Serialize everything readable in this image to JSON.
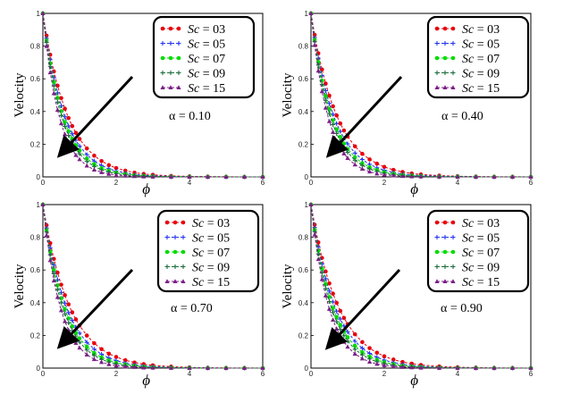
{
  "figure": {
    "panels": [
      {
        "alpha_label": "α = 0.10"
      },
      {
        "alpha_label": "α = 0.40"
      },
      {
        "alpha_label": "α = 0.70"
      },
      {
        "alpha_label": "α = 0.90"
      }
    ]
  },
  "chart_data": {
    "type": "line",
    "layout": "2x2 grid",
    "ylabel": "Velocity",
    "xlabel": "ϕ",
    "xlim": [
      0,
      6
    ],
    "ylim": [
      0,
      1
    ],
    "xticks": [
      "0",
      "2",
      "4",
      "6"
    ],
    "yticks": [
      "0",
      "0.2",
      "0.4",
      "0.6",
      "0.8",
      "1"
    ],
    "legend_position": "top-right",
    "annotation": "arrow indicating decreasing velocity with increasing Sc",
    "x": [
      0,
      0.1,
      0.2,
      0.3,
      0.4,
      0.5,
      0.6,
      0.7,
      0.8,
      0.9,
      1.0,
      1.2,
      1.4,
      1.6,
      1.8,
      2.0,
      2.25,
      2.5,
      2.75,
      3.0,
      3.5,
      4.0,
      4.5,
      5.0,
      5.5,
      6.0
    ],
    "panels": [
      {
        "alpha": "0.10",
        "series": [
          {
            "name": "Sc = 03",
            "color": "#e8000b",
            "marker": "dot",
            "values": [
              1.0,
              0.864,
              0.747,
              0.645,
              0.558,
              0.482,
              0.417,
              0.36,
              0.311,
              0.269,
              0.232,
              0.174,
              0.13,
              0.097,
              0.072,
              0.054,
              0.038,
              0.026,
              0.018,
              0.013,
              0.006,
              0.003,
              0.002,
              0.001,
              0.0,
              0.0
            ]
          },
          {
            "name": "Sc = 05",
            "color": "#2233ee",
            "marker": "plus",
            "values": [
              1.0,
              0.847,
              0.717,
              0.607,
              0.514,
              0.435,
              0.368,
              0.312,
              0.264,
              0.224,
              0.189,
              0.136,
              0.097,
              0.07,
              0.05,
              0.036,
              0.024,
              0.015,
              0.01,
              0.007,
              0.003,
              0.001,
              0.001,
              0.0,
              0.0,
              0.0
            ]
          },
          {
            "name": "Sc = 07",
            "color": "#00dd00",
            "marker": "dot",
            "values": [
              1.0,
              0.833,
              0.695,
              0.579,
              0.483,
              0.402,
              0.335,
              0.279,
              0.233,
              0.194,
              0.162,
              0.112,
              0.078,
              0.054,
              0.038,
              0.026,
              0.017,
              0.01,
              0.007,
              0.004,
              0.002,
              0.001,
              0.0,
              0.0,
              0.0,
              0.0
            ]
          },
          {
            "name": "Sc = 09",
            "color": "#1a6b3a",
            "marker": "plus",
            "values": [
              1.0,
              0.822,
              0.676,
              0.556,
              0.457,
              0.375,
              0.309,
              0.254,
              0.208,
              0.171,
              0.141,
              0.095,
              0.064,
              0.043,
              0.029,
              0.02,
              0.012,
              0.008,
              0.005,
              0.003,
              0.001,
              0.0,
              0.0,
              0.0,
              0.0,
              0.0
            ]
          },
          {
            "name": "Sc = 15",
            "color": "#7a1f86",
            "marker": "triangle",
            "values": [
              1.0,
              0.799,
              0.639,
              0.511,
              0.409,
              0.327,
              0.261,
              0.209,
              0.167,
              0.133,
              0.107,
              0.068,
              0.044,
              0.028,
              0.018,
              0.011,
              0.007,
              0.004,
              0.002,
              0.001,
              0.0,
              0.0,
              0.0,
              0.0,
              0.0,
              0.0
            ]
          }
        ]
      },
      {
        "alpha": "0.40",
        "series": [
          {
            "name": "Sc = 03",
            "color": "#e8000b",
            "marker": "dot",
            "values": [
              1.0,
              0.869,
              0.756,
              0.657,
              0.571,
              0.497,
              0.432,
              0.376,
              0.327,
              0.284,
              0.247,
              0.187,
              0.141,
              0.107,
              0.081,
              0.061,
              0.043,
              0.03,
              0.021,
              0.015,
              0.008,
              0.004,
              0.002,
              0.001,
              0.001,
              0.0
            ]
          },
          {
            "name": "Sc = 05",
            "color": "#2233ee",
            "marker": "plus",
            "values": [
              1.0,
              0.852,
              0.726,
              0.619,
              0.527,
              0.449,
              0.383,
              0.326,
              0.278,
              0.237,
              0.202,
              0.146,
              0.106,
              0.077,
              0.056,
              0.041,
              0.027,
              0.018,
              0.012,
              0.008,
              0.004,
              0.002,
              0.001,
              0.0,
              0.0,
              0.0
            ]
          },
          {
            "name": "Sc = 07",
            "color": "#00dd00",
            "marker": "dot",
            "values": [
              1.0,
              0.838,
              0.703,
              0.589,
              0.494,
              0.414,
              0.347,
              0.291,
              0.244,
              0.204,
              0.171,
              0.12,
              0.084,
              0.059,
              0.042,
              0.029,
              0.019,
              0.012,
              0.008,
              0.005,
              0.002,
              0.001,
              0.0,
              0.0,
              0.0,
              0.0
            ]
          },
          {
            "name": "Sc = 09",
            "color": "#1a6b3a",
            "marker": "plus",
            "values": [
              1.0,
              0.827,
              0.684,
              0.566,
              0.468,
              0.387,
              0.32,
              0.265,
              0.219,
              0.181,
              0.15,
              0.102,
              0.07,
              0.048,
              0.033,
              0.022,
              0.014,
              0.009,
              0.005,
              0.003,
              0.001,
              0.001,
              0.0,
              0.0,
              0.0,
              0.0
            ]
          },
          {
            "name": "Sc = 15",
            "color": "#7a1f86",
            "marker": "triangle",
            "values": [
              1.0,
              0.806,
              0.649,
              0.523,
              0.422,
              0.34,
              0.274,
              0.221,
              0.178,
              0.143,
              0.115,
              0.075,
              0.049,
              0.032,
              0.02,
              0.013,
              0.008,
              0.005,
              0.003,
              0.002,
              0.001,
              0.0,
              0.0,
              0.0,
              0.0,
              0.0
            ]
          }
        ]
      },
      {
        "alpha": "0.70",
        "series": [
          {
            "name": "Sc = 03",
            "color": "#e8000b",
            "marker": "dot",
            "values": [
              1.0,
              0.874,
              0.764,
              0.668,
              0.584,
              0.51,
              0.446,
              0.39,
              0.341,
              0.298,
              0.26,
              0.199,
              0.152,
              0.116,
              0.088,
              0.068,
              0.048,
              0.034,
              0.024,
              0.017,
              0.009,
              0.004,
              0.002,
              0.001,
              0.001,
              0.0
            ]
          },
          {
            "name": "Sc = 05",
            "color": "#2233ee",
            "marker": "plus",
            "values": [
              1.0,
              0.857,
              0.735,
              0.63,
              0.54,
              0.463,
              0.397,
              0.34,
              0.292,
              0.25,
              0.214,
              0.157,
              0.116,
              0.085,
              0.062,
              0.046,
              0.031,
              0.021,
              0.014,
              0.01,
              0.004,
              0.002,
              0.001,
              0.0,
              0.0,
              0.0
            ]
          },
          {
            "name": "Sc = 07",
            "color": "#00dd00",
            "marker": "dot",
            "values": [
              1.0,
              0.844,
              0.712,
              0.6,
              0.506,
              0.427,
              0.36,
              0.304,
              0.256,
              0.216,
              0.182,
              0.13,
              0.092,
              0.066,
              0.047,
              0.033,
              0.022,
              0.014,
              0.009,
              0.006,
              0.003,
              0.001,
              0.0,
              0.0,
              0.0,
              0.0
            ]
          },
          {
            "name": "Sc = 09",
            "color": "#1a6b3a",
            "marker": "plus",
            "values": [
              1.0,
              0.832,
              0.693,
              0.577,
              0.48,
              0.399,
              0.332,
              0.277,
              0.23,
              0.192,
              0.159,
              0.11,
              0.077,
              0.053,
              0.037,
              0.025,
              0.016,
              0.01,
              0.006,
              0.004,
              0.002,
              0.001,
              0.0,
              0.0,
              0.0,
              0.0
            ]
          },
          {
            "name": "Sc = 15",
            "color": "#7a1f86",
            "marker": "triangle",
            "values": [
              1.0,
              0.812,
              0.659,
              0.535,
              0.434,
              0.353,
              0.286,
              0.232,
              0.189,
              0.153,
              0.124,
              0.082,
              0.054,
              0.036,
              0.023,
              0.015,
              0.009,
              0.006,
              0.003,
              0.002,
              0.001,
              0.0,
              0.0,
              0.0,
              0.0,
              0.0
            ]
          }
        ]
      },
      {
        "alpha": "0.90",
        "series": [
          {
            "name": "Sc = 03",
            "color": "#e8000b",
            "marker": "dot",
            "values": [
              1.0,
              0.877,
              0.769,
              0.674,
              0.591,
              0.518,
              0.455,
              0.399,
              0.35,
              0.307,
              0.269,
              0.207,
              0.159,
              0.122,
              0.094,
              0.072,
              0.052,
              0.037,
              0.027,
              0.019,
              0.01,
              0.005,
              0.003,
              0.001,
              0.001,
              0.0
            ]
          },
          {
            "name": "Sc = 05",
            "color": "#2233ee",
            "marker": "plus",
            "values": [
              1.0,
              0.86,
              0.74,
              0.636,
              0.547,
              0.471,
              0.405,
              0.348,
              0.3,
              0.258,
              0.222,
              0.164,
              0.121,
              0.09,
              0.066,
              0.049,
              0.034,
              0.023,
              0.016,
              0.011,
              0.005,
              0.002,
              0.001,
              0.001,
              0.0,
              0.0
            ]
          },
          {
            "name": "Sc = 07",
            "color": "#00dd00",
            "marker": "dot",
            "values": [
              1.0,
              0.847,
              0.717,
              0.607,
              0.514,
              0.435,
              0.368,
              0.312,
              0.264,
              0.224,
              0.189,
              0.136,
              0.097,
              0.07,
              0.05,
              0.036,
              0.024,
              0.015,
              0.01,
              0.007,
              0.003,
              0.001,
              0.001,
              0.0,
              0.0,
              0.0
            ]
          },
          {
            "name": "Sc = 09",
            "color": "#1a6b3a",
            "marker": "plus",
            "values": [
              1.0,
              0.835,
              0.698,
              0.583,
              0.487,
              0.407,
              0.34,
              0.284,
              0.237,
              0.198,
              0.165,
              0.115,
              0.081,
              0.056,
              0.039,
              0.027,
              0.018,
              0.011,
              0.007,
              0.005,
              0.002,
              0.001,
              0.0,
              0.0,
              0.0,
              0.0
            ]
          },
          {
            "name": "Sc = 15",
            "color": "#7a1f86",
            "marker": "triangle",
            "values": [
              1.0,
              0.816,
              0.666,
              0.543,
              0.443,
              0.361,
              0.295,
              0.24,
              0.196,
              0.16,
              0.13,
              0.087,
              0.058,
              0.038,
              0.025,
              0.017,
              0.01,
              0.006,
              0.004,
              0.002,
              0.001,
              0.0,
              0.0,
              0.0,
              0.0,
              0.0
            ]
          }
        ]
      }
    ]
  }
}
